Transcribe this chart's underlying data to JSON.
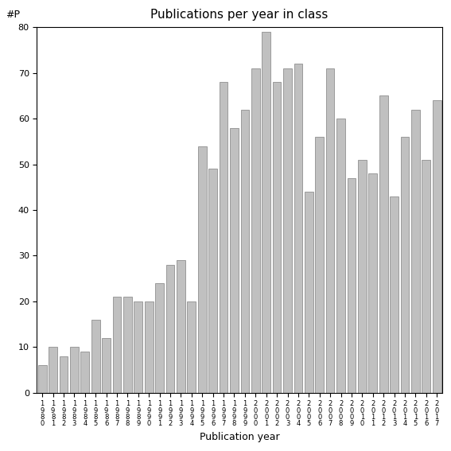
{
  "title": "Publications per year in class",
  "xlabel": "Publication year",
  "ylabel": "#P",
  "bar_color": "#c0c0c0",
  "bar_edge_color": "#808080",
  "years": [
    "1980",
    "1981",
    "1982",
    "1983",
    "1984",
    "1985",
    "1986",
    "1987",
    "1988",
    "1989",
    "1990",
    "1991",
    "1992",
    "1993",
    "1994",
    "1995",
    "1996",
    "1997",
    "1998",
    "1999",
    "2000",
    "2001",
    "2002",
    "2003",
    "2004",
    "2005",
    "2006",
    "2007",
    "2008",
    "2009",
    "2010",
    "2011",
    "2012",
    "2013",
    "2014",
    "2015",
    "2016",
    "2017"
  ],
  "values": [
    6,
    10,
    8,
    10,
    9,
    16,
    12,
    21,
    21,
    20,
    20,
    24,
    28,
    29,
    20,
    54,
    49,
    68,
    58,
    62,
    71,
    79,
    68,
    71,
    72,
    44,
    56,
    71,
    60,
    47,
    51,
    48,
    65,
    43,
    56,
    62,
    51,
    64
  ],
  "ylim": [
    0,
    80
  ],
  "yticks": [
    0,
    10,
    20,
    30,
    40,
    50,
    60,
    70,
    80
  ],
  "background_color": "#ffffff"
}
